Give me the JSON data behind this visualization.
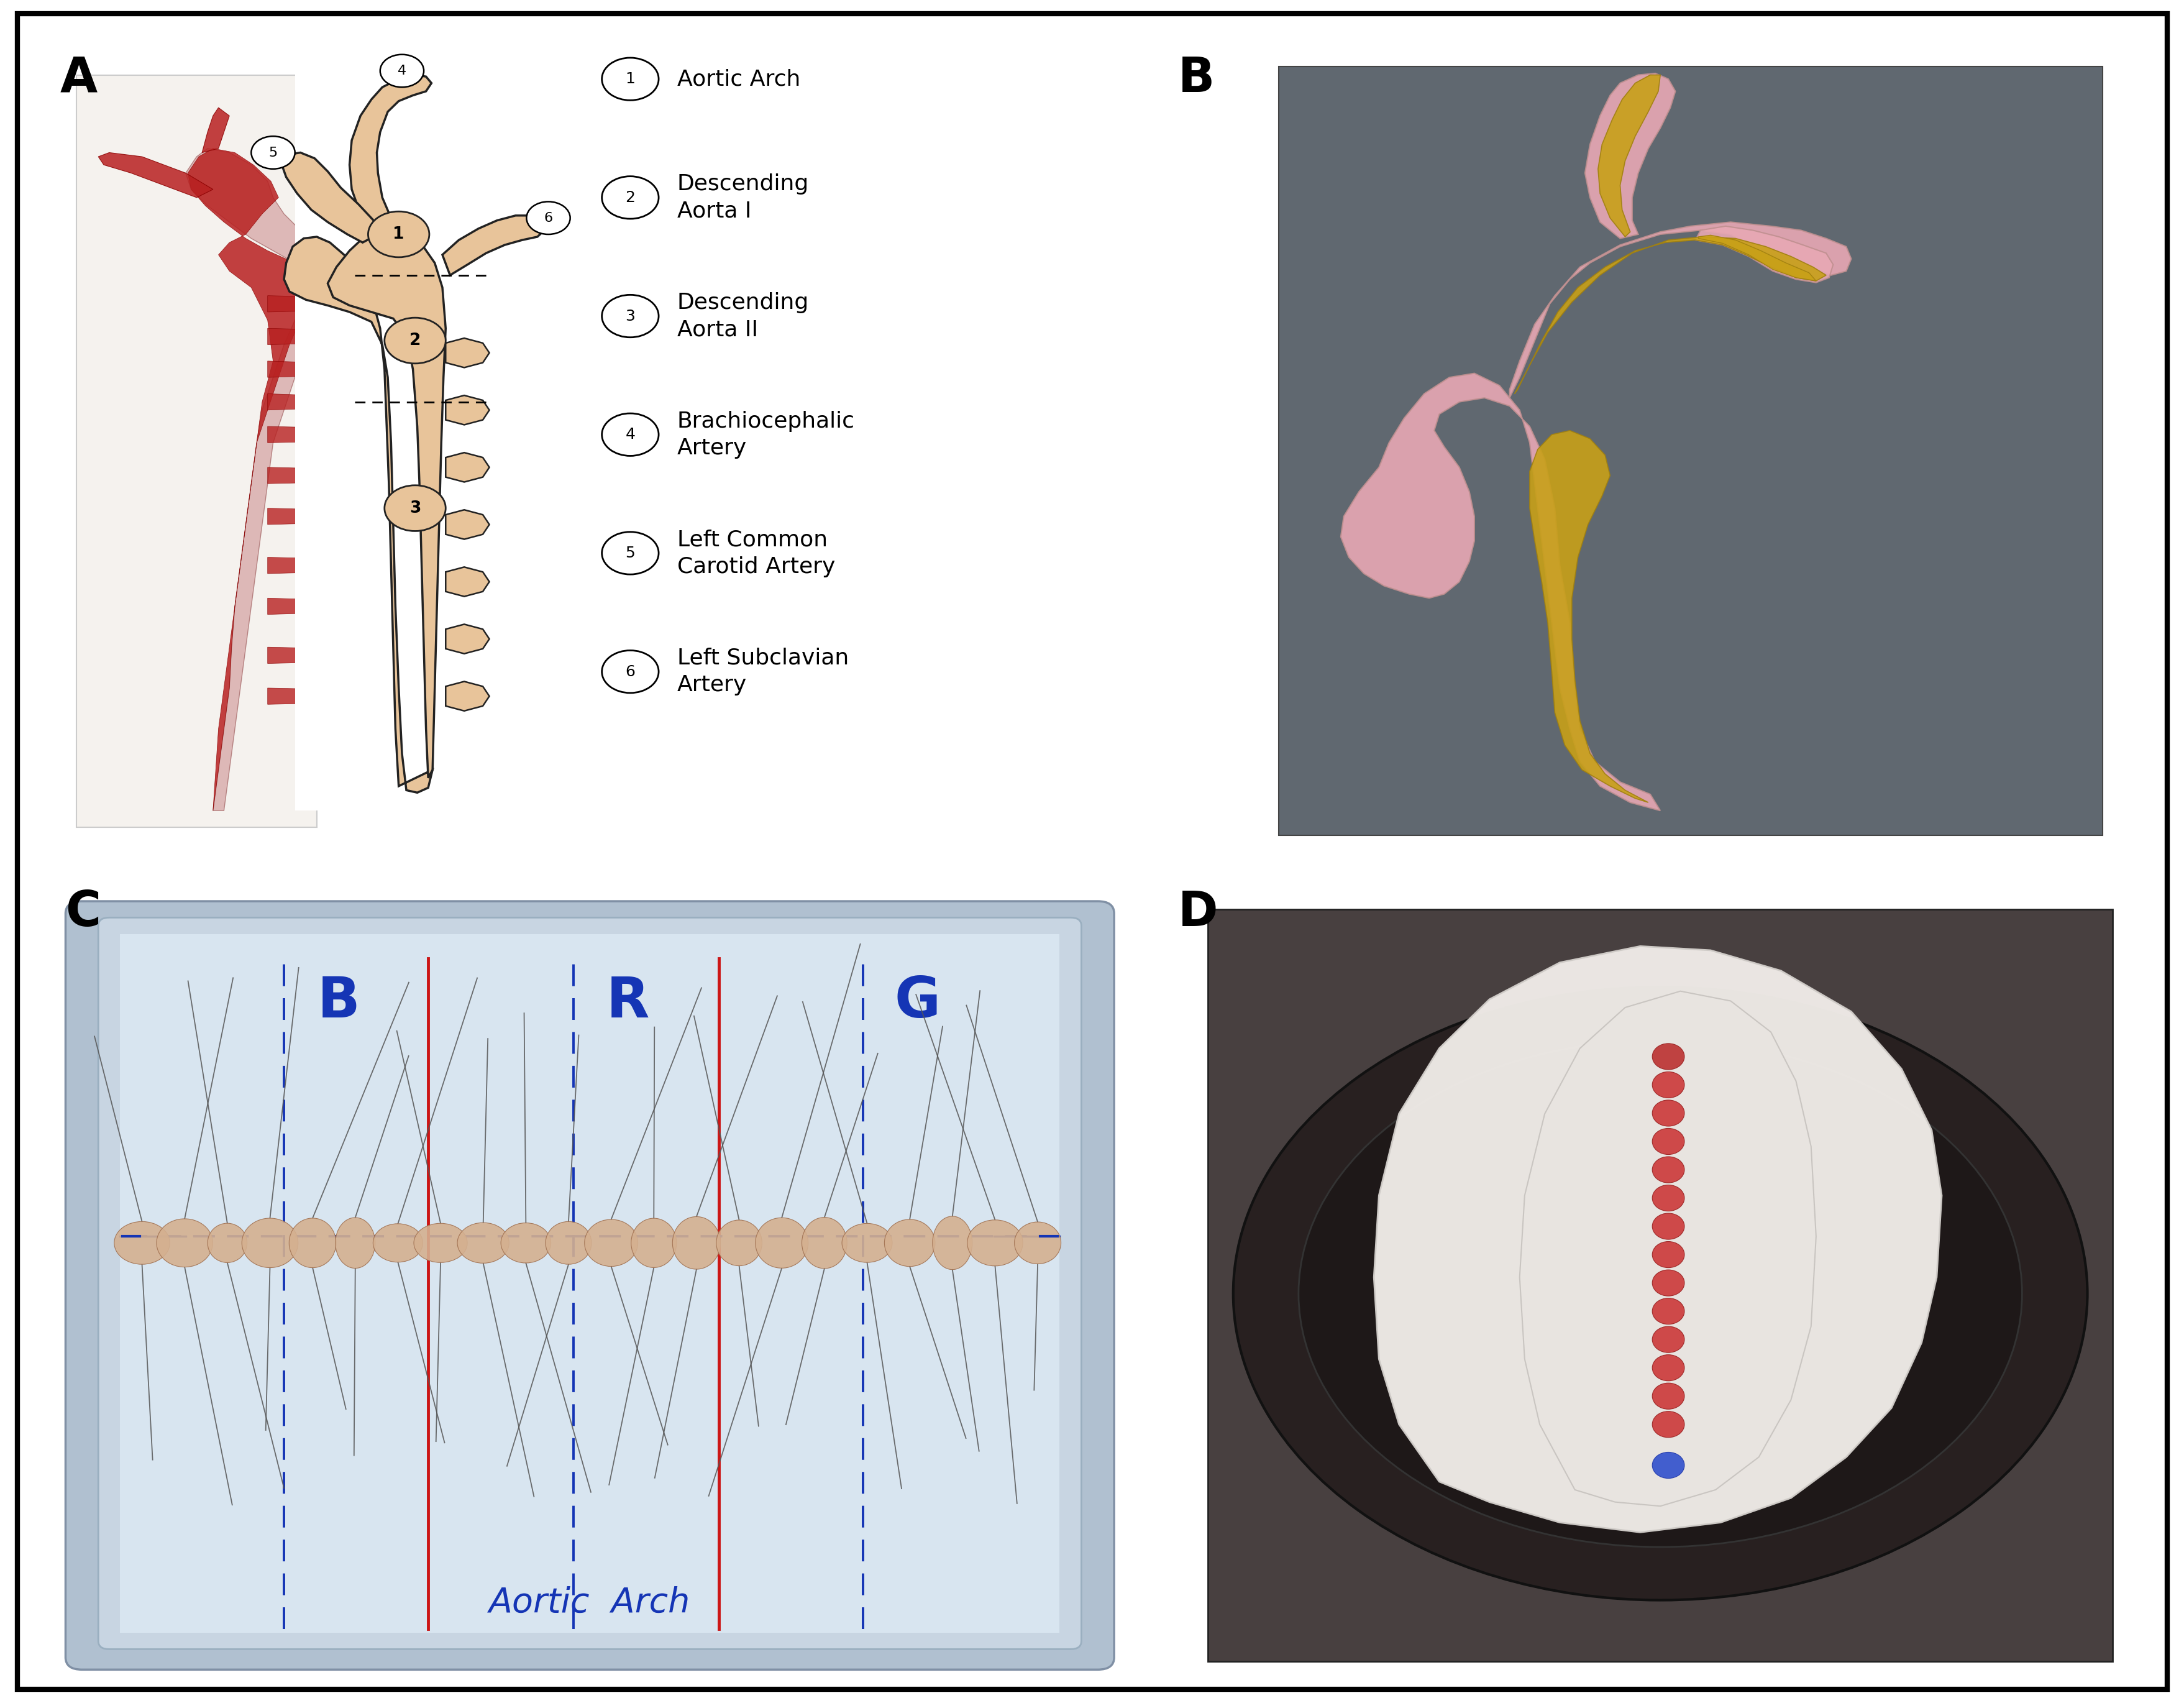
{
  "panel_labels": [
    "A",
    "B",
    "C",
    "D"
  ],
  "panel_label_fontsize": 56,
  "panel_label_fontweight": "bold",
  "background_color": "#ffffff",
  "border_color": "#000000",
  "legend_items": [
    {
      "num": "1",
      "text": "Aortic Arch"
    },
    {
      "num": "2",
      "text": "Descending\nAorta I"
    },
    {
      "num": "3",
      "text": "Descending\nAorta II"
    },
    {
      "num": "4",
      "text": "Brachiocephalic\nArtery"
    },
    {
      "num": "5",
      "text": "Left Common\nCarotid Artery"
    },
    {
      "num": "6",
      "text": "Left Subclavian\nArtery"
    }
  ],
  "legend_fontsize": 26,
  "aorta_color": "#E8C49A",
  "aorta_outline": "#222222",
  "photo_bg": "#f2eee8",
  "B_bg": "#5a6870",
  "pink_color": "#e8a8b4",
  "yellow_color": "#c8a018",
  "C_bg_outer": "#b8c8d8",
  "C_bg_inner": "#ccd8e4",
  "D_bg": "#1a1a1a"
}
